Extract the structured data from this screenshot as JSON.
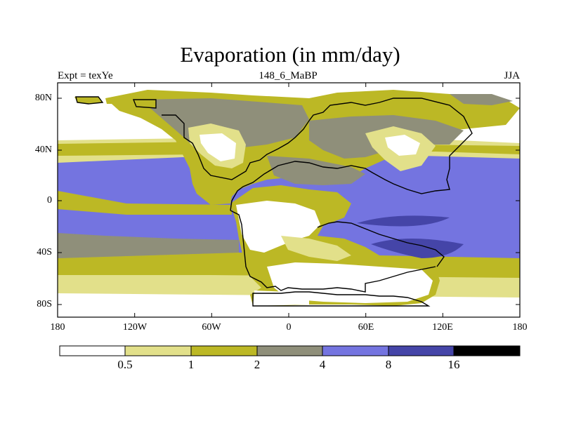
{
  "title": "Evaporation (in mm/day)",
  "subtitle_left": "Expt = texYe",
  "subtitle_center": "148_6_MaBP",
  "subtitle_right": "JJA",
  "map": {
    "lat_labels": [
      "80N",
      "40N",
      "0",
      "40S",
      "80S"
    ],
    "lon_labels": [
      "180",
      "120W",
      "60W",
      "0",
      "60E",
      "120E",
      "180"
    ],
    "lon_range": [
      -180,
      180
    ],
    "lat_range": [
      -90,
      90
    ]
  },
  "colorbar": {
    "levels": [
      "0.5",
      "1",
      "2",
      "4",
      "8",
      "16"
    ],
    "colors": [
      "#ffffff",
      "#e2e08a",
      "#bcb825",
      "#8f8f7a",
      "#7474e0",
      "#4545a8",
      "#000000"
    ]
  }
}
